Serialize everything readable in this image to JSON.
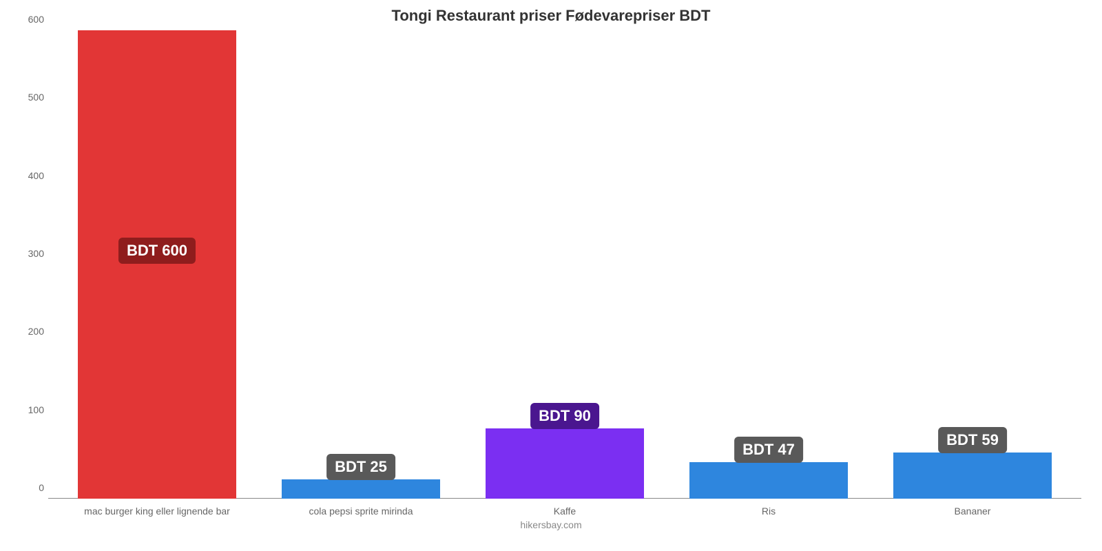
{
  "chart": {
    "type": "bar",
    "title": "Tongi Restaurant priser Fødevarepriser BDT",
    "title_fontsize": 22,
    "title_color": "#333333",
    "categories": [
      "mac burger king eller lignende bar",
      "cola pepsi sprite mirinda",
      "Kaffe",
      "Ris",
      "Bananer"
    ],
    "values": [
      600,
      25,
      90,
      47,
      59
    ],
    "value_labels": [
      "BDT 600",
      "BDT 25",
      "BDT 90",
      "BDT 47",
      "BDT 59"
    ],
    "bar_colors": [
      "#e23636",
      "#2e86de",
      "#7b2ff2",
      "#2e86de",
      "#2e86de"
    ],
    "badge_colors": [
      "#8f1d1d",
      "#595959",
      "#4a168f",
      "#595959",
      "#595959"
    ],
    "value_label_fontsize": 22,
    "bar_width_ratio": 0.78,
    "y_ticks": [
      0,
      100,
      200,
      300,
      400,
      500,
      600
    ],
    "ylim": [
      0,
      600
    ],
    "axis_label_fontsize": 14,
    "axis_label_color": "#666666",
    "background_color": "#ffffff",
    "baseline_color": "#888888",
    "attribution": "hikersbay.com",
    "attribution_fontsize": 14,
    "attribution_color": "#888888"
  }
}
